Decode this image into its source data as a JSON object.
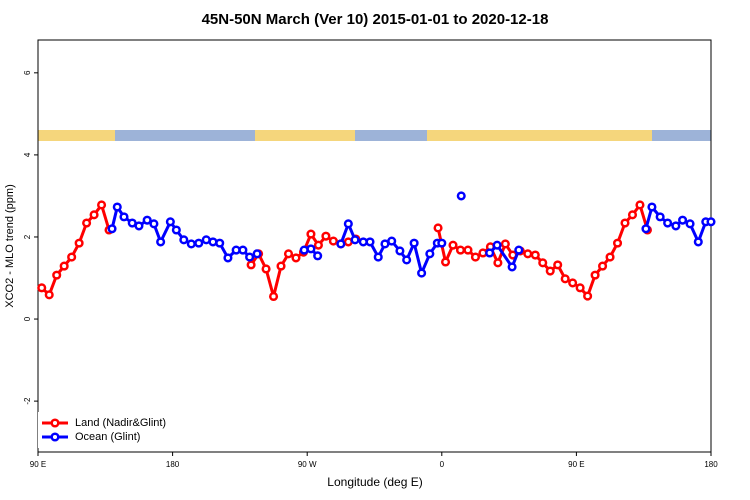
{
  "chart_data": {
    "type": "line",
    "title": "45N-50N March (Ver 10)   2015-01-01 to 2020-12-18",
    "xlabel": "Longitude (deg E)",
    "ylabel": "XCO2 - MLO trend (ppm)",
    "xlim": [
      90,
      540
    ],
    "ylim": [
      -3.24,
      6.8
    ],
    "xticks": [
      {
        "value": 90,
        "label": "90 E"
      },
      180,
      {
        "value": 270,
        "label": "90 W"
      },
      0,
      {
        "value": 450,
        "label": "90 E"
      },
      180
    ],
    "xtick_positions": [
      90,
      180,
      270,
      360,
      450,
      540
    ],
    "yticks": [
      -2,
      0,
      2,
      4,
      6
    ],
    "legend": "bottom-left",
    "series": [
      {
        "name": "Land (Nadir&Glint)",
        "color": "#ff0000",
        "x": [
          92.5,
          97.5,
          102.5,
          107.5,
          112.5,
          117.5,
          122.5,
          127.5,
          132.5,
          137.5,
          null,
          232.5,
          237.5,
          242.5,
          247.5,
          252.5,
          257.5,
          262.5,
          267.5,
          272.5,
          277.5,
          282.5,
          287.5,
          292.5,
          297.5,
          302.5,
          null,
          357.5,
          362.5,
          367.5,
          372.5,
          377.5,
          382.5,
          387.5,
          392.5,
          397.5,
          402.5,
          407.5,
          412.5,
          417.5,
          422.5,
          427.5,
          432.5,
          437.5,
          442.5,
          447.5,
          452.5,
          457.5,
          462.5,
          467.5,
          472.5,
          477.5,
          482.5,
          487.5,
          492.5,
          497.5
        ],
        "values": [
          0.76,
          0.59,
          1.07,
          1.29,
          1.51,
          1.85,
          2.34,
          2.54,
          2.78,
          2.17,
          null,
          1.32,
          1.59,
          1.22,
          0.55,
          1.29,
          1.59,
          1.49,
          1.63,
          2.07,
          1.8,
          2.02,
          1.9,
          1.83,
          1.88,
          1.95,
          null,
          2.22,
          1.39,
          1.8,
          1.68,
          1.68,
          1.51,
          1.61,
          1.76,
          1.37,
          1.83,
          1.56,
          1.66,
          1.59,
          1.56,
          1.37,
          1.17,
          1.32,
          0.98,
          0.88,
          0.76,
          0.56,
          1.07,
          1.29,
          1.51,
          1.85,
          2.34,
          2.54,
          2.78,
          2.17
        ]
      },
      {
        "name": "Ocean (Glint)",
        "color": "#0000ff",
        "x": [
          139.5,
          143,
          147.5,
          153,
          157.5,
          163,
          167.5,
          172,
          178.5,
          182.5,
          187.5,
          192.5,
          197.5,
          202.5,
          207,
          211.5,
          217,
          222.5,
          227,
          231.5,
          236.5,
          null,
          268,
          272.5,
          277,
          null,
          292.5,
          297.5,
          302,
          307.5,
          312,
          317.5,
          322,
          326.5,
          332,
          336.5,
          341.5,
          346.5,
          352,
          357,
          360,
          null,
          373,
          null,
          392,
          397,
          407,
          411.5,
          null,
          496.5,
          500.5,
          506,
          511,
          516.5,
          521,
          526,
          531.5,
          536.5,
          540
        ],
        "values": [
          2.2,
          2.73,
          2.49,
          2.34,
          2.27,
          2.41,
          2.32,
          1.88,
          2.37,
          2.17,
          1.93,
          1.83,
          1.85,
          1.93,
          1.88,
          1.85,
          1.49,
          1.68,
          1.68,
          1.51,
          1.59,
          null,
          1.68,
          1.71,
          1.54,
          null,
          1.83,
          2.32,
          1.93,
          1.88,
          1.88,
          1.51,
          1.83,
          1.9,
          1.66,
          1.44,
          1.85,
          1.12,
          1.59,
          1.85,
          1.85,
          null,
          3.0,
          null,
          1.61,
          1.8,
          1.27,
          1.68,
          null,
          2.2,
          2.73,
          2.49,
          2.34,
          2.27,
          2.41,
          2.32,
          1.88,
          2.37,
          2.37
        ]
      }
    ]
  }
}
